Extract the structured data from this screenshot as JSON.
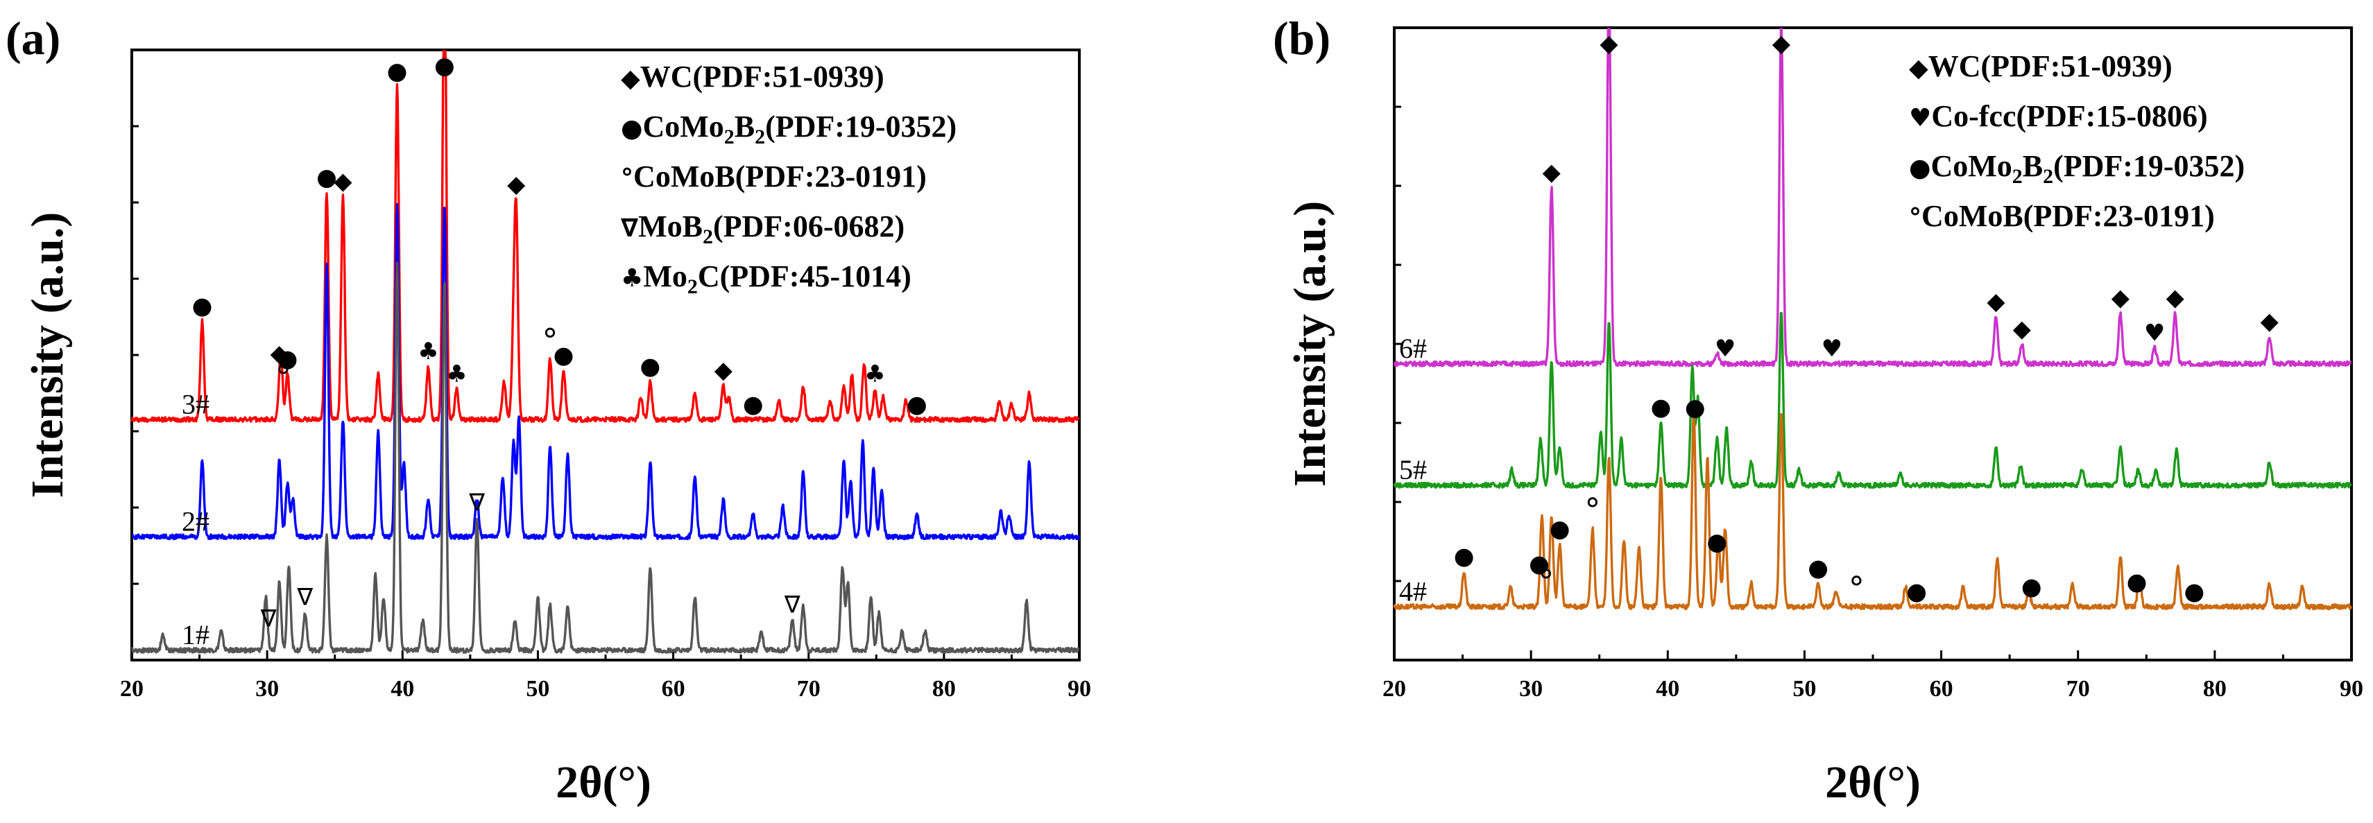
{
  "chart_data": [
    {
      "panel_label": "(a)",
      "type": "line",
      "xlabel": "2θ(°)",
      "ylabel": "Intensity (a.u.)",
      "xlim": [
        20,
        90
      ],
      "x_ticks": [
        20,
        30,
        40,
        50,
        60,
        70,
        80,
        90
      ],
      "series": [
        {
          "name": "3#",
          "color": "#ff0000",
          "baseline": 0.63,
          "peaks": [
            [
              25.2,
              0.26
            ],
            [
              31.0,
              0.18
            ],
            [
              31.5,
              0.12
            ],
            [
              34.4,
              0.6
            ],
            [
              35.6,
              0.59
            ],
            [
              38.2,
              0.12
            ],
            [
              39.6,
              0.88
            ],
            [
              41.9,
              0.14
            ],
            [
              43.1,
              1.26
            ],
            [
              44.0,
              0.08
            ],
            [
              47.5,
              0.1
            ],
            [
              48.2,
              0.2
            ],
            [
              48.4,
              0.52
            ],
            [
              50.9,
              0.16
            ],
            [
              51.9,
              0.13
            ],
            [
              57.6,
              0.06
            ],
            [
              58.3,
              0.1
            ],
            [
              61.6,
              0.07
            ],
            [
              63.7,
              0.09
            ],
            [
              64.1,
              0.06
            ],
            [
              67.8,
              0.05
            ],
            [
              69.6,
              0.09
            ],
            [
              71.6,
              0.05
            ],
            [
              72.6,
              0.09
            ],
            [
              73.2,
              0.12
            ],
            [
              74.1,
              0.15
            ],
            [
              74.9,
              0.08
            ],
            [
              75.5,
              0.06
            ],
            [
              77.2,
              0.05
            ],
            [
              84.1,
              0.05
            ],
            [
              85.0,
              0.04
            ],
            [
              86.3,
              0.07
            ]
          ]
        },
        {
          "name": "2#",
          "color": "#0000ff",
          "baseline": 0.32,
          "peaks": [
            [
              25.2,
              0.2
            ],
            [
              30.9,
              0.2
            ],
            [
              31.5,
              0.14
            ],
            [
              31.9,
              0.1
            ],
            [
              34.4,
              0.72
            ],
            [
              35.6,
              0.31
            ],
            [
              38.2,
              0.28
            ],
            [
              39.6,
              0.88
            ],
            [
              40.1,
              0.2
            ],
            [
              41.9,
              0.1
            ],
            [
              43.1,
              0.88
            ],
            [
              45.5,
              0.1
            ],
            [
              47.4,
              0.16
            ],
            [
              48.2,
              0.25
            ],
            [
              48.6,
              0.31
            ],
            [
              50.9,
              0.24
            ],
            [
              52.2,
              0.22
            ],
            [
              58.3,
              0.2
            ],
            [
              61.6,
              0.16
            ],
            [
              63.7,
              0.1
            ],
            [
              65.9,
              0.06
            ],
            [
              68.1,
              0.08
            ],
            [
              69.6,
              0.17
            ],
            [
              72.6,
              0.2
            ],
            [
              73.1,
              0.15
            ],
            [
              74.0,
              0.25
            ],
            [
              74.8,
              0.18
            ],
            [
              75.4,
              0.12
            ],
            [
              78.0,
              0.06
            ],
            [
              84.2,
              0.07
            ],
            [
              84.8,
              0.06
            ],
            [
              86.3,
              0.2
            ]
          ]
        },
        {
          "name": "1#",
          "color": "#555555",
          "baseline": 0.02,
          "peaks": [
            [
              22.3,
              0.04
            ],
            [
              26.6,
              0.05
            ],
            [
              29.9,
              0.14
            ],
            [
              30.9,
              0.18
            ],
            [
              31.6,
              0.22
            ],
            [
              32.8,
              0.1
            ],
            [
              34.4,
              0.3
            ],
            [
              38.0,
              0.2
            ],
            [
              38.6,
              0.14
            ],
            [
              39.6,
              1.02
            ],
            [
              41.5,
              0.08
            ],
            [
              43.1,
              0.98
            ],
            [
              45.5,
              0.35
            ],
            [
              48.3,
              0.08
            ],
            [
              50.0,
              0.14
            ],
            [
              50.9,
              0.12
            ],
            [
              52.2,
              0.12
            ],
            [
              58.3,
              0.22
            ],
            [
              61.6,
              0.14
            ],
            [
              66.5,
              0.05
            ],
            [
              68.8,
              0.08
            ],
            [
              69.6,
              0.12
            ],
            [
              72.5,
              0.22
            ],
            [
              72.9,
              0.18
            ],
            [
              74.6,
              0.14
            ],
            [
              75.2,
              0.1
            ],
            [
              76.9,
              0.05
            ],
            [
              78.6,
              0.05
            ],
            [
              86.1,
              0.13
            ]
          ]
        }
      ],
      "legend": [
        {
          "symbol": "◆",
          "pre": "WC(PDF:51-0939)",
          "sub1": "",
          "mid": "",
          "sub2": "",
          "post": ""
        },
        {
          "symbol": "●",
          "pre": "CoMo",
          "sub1": "2",
          "mid": "B",
          "sub2": "2",
          "post": "(PDF:19-0352)"
        },
        {
          "symbol": "°",
          "pre": "CoMoB(PDF:23-0191)",
          "sub1": "",
          "mid": "",
          "sub2": "",
          "post": ""
        },
        {
          "symbol": "∇",
          "pre": "MoB",
          "sub1": "2",
          "mid": "(PDF:06-0682)",
          "sub2": "",
          "post": ""
        },
        {
          "symbol": "♣",
          "pre": "Mo",
          "sub1": "2",
          "mid": "C(PDF:45-1014)",
          "sub2": "",
          "post": ""
        }
      ],
      "markers": [
        {
          "symbol": "●",
          "x": 25.2,
          "series": "3#"
        },
        {
          "symbol": "◆",
          "x": 30.9,
          "series": "3#"
        },
        {
          "symbol": "●",
          "x": 31.5,
          "series": "3#"
        },
        {
          "symbol": "°",
          "x": 31.2,
          "series": "3#"
        },
        {
          "symbol": "●",
          "x": 34.4,
          "series": "3#"
        },
        {
          "symbol": "◆",
          "x": 35.6,
          "series": "3#"
        },
        {
          "symbol": "●",
          "x": 39.6,
          "series": "3#"
        },
        {
          "symbol": "♣",
          "x": 41.9,
          "series": "3#"
        },
        {
          "symbol": "●",
          "x": 43.1,
          "series": "3#"
        },
        {
          "symbol": "♣",
          "x": 44.0,
          "series": "3#"
        },
        {
          "symbol": "◆",
          "x": 48.4,
          "series": "3#"
        },
        {
          "symbol": "°",
          "x": 50.9,
          "series": "3#"
        },
        {
          "symbol": "●",
          "x": 51.9,
          "series": "3#"
        },
        {
          "symbol": "●",
          "x": 58.3,
          "series": "3#"
        },
        {
          "symbol": "◆",
          "x": 63.7,
          "series": "3#"
        },
        {
          "symbol": "●",
          "x": 65.9,
          "series": "3#"
        },
        {
          "symbol": "♣",
          "x": 74.9,
          "series": "3#"
        },
        {
          "symbol": "●",
          "x": 78.0,
          "series": "3#"
        },
        {
          "symbol": "∇",
          "x": 30.1,
          "series": "1#"
        },
        {
          "symbol": "∇",
          "x": 32.8,
          "series": "1#"
        },
        {
          "symbol": "∇",
          "x": 45.5,
          "series": "1#"
        },
        {
          "symbol": "∇",
          "x": 68.8,
          "series": "1#"
        }
      ]
    },
    {
      "panel_label": "(b)",
      "type": "line",
      "xlabel": "2θ(°)",
      "ylabel": "Intensity (a.u.)",
      "xlim": [
        20,
        90
      ],
      "x_ticks": [
        20,
        30,
        40,
        50,
        60,
        70,
        80,
        90
      ],
      "series": [
        {
          "name": "6#",
          "color": "#cc33cc",
          "baseline": 0.75,
          "peaks": [
            [
              31.5,
              0.45
            ],
            [
              35.7,
              0.95
            ],
            [
              43.6,
              0.03
            ],
            [
              48.3,
              0.88
            ],
            [
              64.0,
              0.12
            ],
            [
              65.9,
              0.05
            ],
            [
              73.1,
              0.13
            ],
            [
              75.6,
              0.04
            ],
            [
              77.1,
              0.13
            ],
            [
              84.0,
              0.07
            ]
          ]
        },
        {
          "name": "5#",
          "color": "#1a9a1a",
          "baseline": 0.44,
          "peaks": [
            [
              28.6,
              0.04
            ],
            [
              30.7,
              0.12
            ],
            [
              31.5,
              0.32
            ],
            [
              32.1,
              0.1
            ],
            [
              35.1,
              0.14
            ],
            [
              35.7,
              0.42
            ],
            [
              36.6,
              0.12
            ],
            [
              39.5,
              0.16
            ],
            [
              41.8,
              0.3
            ],
            [
              42.2,
              0.22
            ],
            [
              43.6,
              0.12
            ],
            [
              44.3,
              0.15
            ],
            [
              46.1,
              0.06
            ],
            [
              48.3,
              0.45
            ],
            [
              49.6,
              0.04
            ],
            [
              52.5,
              0.03
            ],
            [
              57.0,
              0.03
            ],
            [
              64.0,
              0.1
            ],
            [
              65.8,
              0.05
            ],
            [
              70.3,
              0.04
            ],
            [
              73.1,
              0.1
            ],
            [
              74.4,
              0.04
            ],
            [
              75.7,
              0.04
            ],
            [
              77.2,
              0.09
            ],
            [
              84.0,
              0.06
            ]
          ]
        },
        {
          "name": "4#",
          "color": "#cc6a10",
          "baseline": 0.13,
          "peaks": [
            [
              25.1,
              0.09
            ],
            [
              28.5,
              0.05
            ],
            [
              30.8,
              0.23
            ],
            [
              31.5,
              0.23
            ],
            [
              32.1,
              0.16
            ],
            [
              34.5,
              0.2
            ],
            [
              35.7,
              0.38
            ],
            [
              36.8,
              0.17
            ],
            [
              37.9,
              0.15
            ],
            [
              39.5,
              0.33
            ],
            [
              41.9,
              0.5
            ],
            [
              42.9,
              0.38
            ],
            [
              43.7,
              0.17
            ],
            [
              44.2,
              0.2
            ],
            [
              46.1,
              0.06
            ],
            [
              48.3,
              0.5
            ],
            [
              51.0,
              0.06
            ],
            [
              52.3,
              0.04
            ],
            [
              57.4,
              0.05
            ],
            [
              61.6,
              0.05
            ],
            [
              64.1,
              0.12
            ],
            [
              66.4,
              0.04
            ],
            [
              69.6,
              0.06
            ],
            [
              73.1,
              0.13
            ],
            [
              74.5,
              0.08
            ],
            [
              77.3,
              0.1
            ],
            [
              84.0,
              0.06
            ],
            [
              86.4,
              0.05
            ]
          ]
        }
      ],
      "legend": [
        {
          "symbol": "◆",
          "pre": "WC(PDF:51-0939)",
          "sub1": "",
          "mid": "",
          "sub2": "",
          "post": ""
        },
        {
          "symbol": "♥",
          "pre": "Co-fcc(PDF:15-0806)",
          "sub1": "",
          "mid": "",
          "sub2": "",
          "post": ""
        },
        {
          "symbol": "●",
          "pre": "CoMo",
          "sub1": "2",
          "mid": "B",
          "sub2": "2",
          "post": "(PDF:19-0352)"
        },
        {
          "symbol": "°",
          "pre": "CoMoB(PDF:23-0191)",
          "sub1": "",
          "mid": "",
          "sub2": "",
          "post": ""
        }
      ],
      "markers": [
        {
          "symbol": "◆",
          "x": 31.5,
          "series": "6#"
        },
        {
          "symbol": "◆",
          "x": 35.7,
          "series": "6#"
        },
        {
          "symbol": "♥",
          "x": 44.2,
          "series": "6#"
        },
        {
          "symbol": "♥",
          "x": 52.0,
          "series": "6#"
        },
        {
          "symbol": "◆",
          "x": 48.3,
          "series": "6#"
        },
        {
          "symbol": "◆",
          "x": 64.0,
          "series": "6#"
        },
        {
          "symbol": "◆",
          "x": 65.9,
          "series": "6#"
        },
        {
          "symbol": "◆",
          "x": 73.1,
          "series": "6#"
        },
        {
          "symbol": "♥",
          "x": 75.6,
          "series": "6#"
        },
        {
          "symbol": "◆",
          "x": 77.1,
          "series": "6#"
        },
        {
          "symbol": "◆",
          "x": 84.0,
          "series": "6#"
        },
        {
          "symbol": "●",
          "x": 42.0,
          "series": "5#"
        },
        {
          "symbol": "●",
          "x": 39.5,
          "series": "5#"
        },
        {
          "symbol": "●",
          "x": 25.1,
          "series": "4#"
        },
        {
          "symbol": "●",
          "x": 30.6,
          "series": "4#"
        },
        {
          "symbol": "°",
          "x": 31.1,
          "series": "4#"
        },
        {
          "symbol": "●",
          "x": 32.1,
          "series": "4#"
        },
        {
          "symbol": "°",
          "x": 34.5,
          "series": "4#"
        },
        {
          "symbol": "●",
          "x": 43.6,
          "series": "4#"
        },
        {
          "symbol": "●",
          "x": 51.0,
          "series": "4#"
        },
        {
          "symbol": "°",
          "x": 53.8,
          "series": "4#"
        },
        {
          "symbol": "●",
          "x": 58.2,
          "series": "4#"
        },
        {
          "symbol": "●",
          "x": 66.6,
          "series": "4#"
        },
        {
          "symbol": "●",
          "x": 74.3,
          "series": "4#"
        },
        {
          "symbol": "●",
          "x": 78.5,
          "series": "4#"
        }
      ]
    }
  ]
}
